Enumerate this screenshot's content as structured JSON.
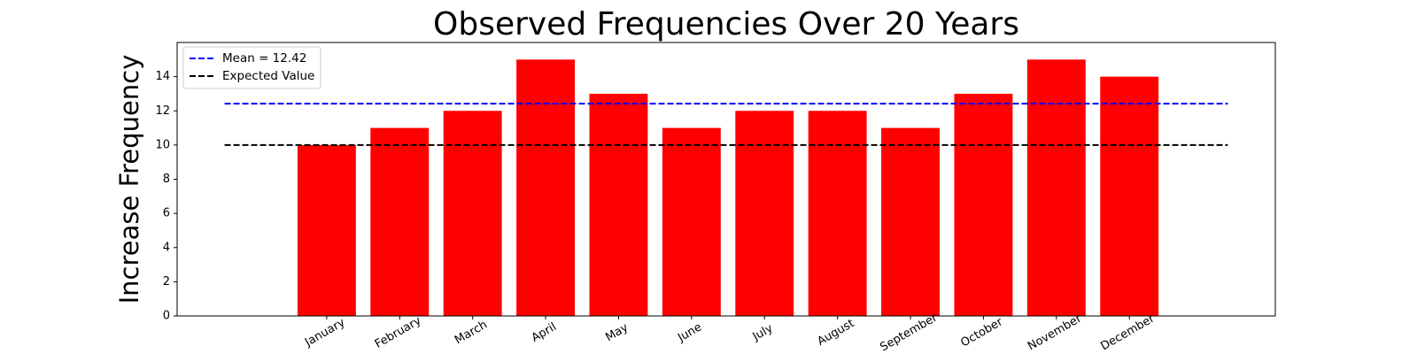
{
  "chart_data": {
    "type": "bar",
    "title": "Observed Frequencies Over 20 Years",
    "xlabel": "",
    "ylabel": "Increase Frequency",
    "categories": [
      "January",
      "February",
      "March",
      "April",
      "May",
      "June",
      "July",
      "August",
      "September",
      "October",
      "November",
      "December"
    ],
    "values": [
      10,
      11,
      12,
      15,
      13,
      11,
      12,
      12,
      11,
      13,
      15,
      14
    ],
    "ylim": [
      0,
      16
    ],
    "yticks": [
      "0",
      "2",
      "4",
      "6",
      "8",
      "10",
      "12",
      "14"
    ],
    "bar_color": "#ff0000",
    "reference_lines": [
      {
        "label": "Mean = 12.42",
        "value": 12.42,
        "color": "#0000ff",
        "style": "dashed"
      },
      {
        "label": "Expected Value",
        "value": 10,
        "color": "#000000",
        "style": "dashed"
      }
    ],
    "legend_position": "upper-left",
    "grid": false
  }
}
